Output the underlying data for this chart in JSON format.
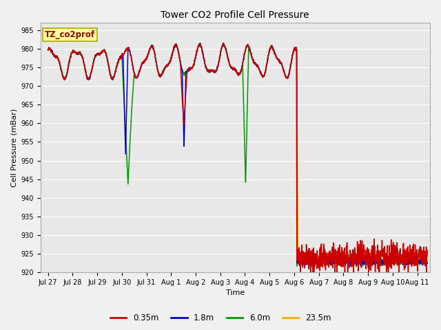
{
  "title": "Tower CO2 Profile Cell Pressure",
  "xlabel": "Time",
  "ylabel": "Cell Pressure (mBar)",
  "ylim": [
    920,
    987
  ],
  "yticks": [
    920,
    925,
    930,
    935,
    940,
    945,
    950,
    955,
    960,
    965,
    970,
    975,
    980,
    985
  ],
  "figsize": [
    6.4,
    4.8
  ],
  "dpi": 100,
  "bg_color": "#f0f0f0",
  "plot_bg_color": "#e8e8e8",
  "series_colors": [
    "#cc0000",
    "#0000cc",
    "#009900",
    "#ffaa00"
  ],
  "series_labels": [
    "0.35m",
    "1.8m",
    "6.0m",
    "23.5m"
  ],
  "legend_box_text": "TZ_co2prof",
  "legend_box_facecolor": "#ffff99",
  "legend_box_edgecolor": "#aaaa00",
  "legend_box_textcolor": "#990000",
  "xtick_labels": [
    "Jul 27",
    "Jul 28",
    "Jul 29",
    "Jul 30",
    "Jul 31",
    "Aug 1",
    "Aug 2",
    "Aug 3",
    "Aug 4",
    "Aug 5",
    "Aug 6",
    "Aug 7",
    "Aug 8",
    "Aug 9",
    "Aug 10",
    "Aug 11"
  ],
  "xtick_positions": [
    0,
    1,
    2,
    3,
    4,
    5,
    6,
    7,
    8,
    9,
    10,
    11,
    12,
    13,
    14,
    15
  ],
  "xlim": [
    -0.3,
    15.5
  ],
  "grid_color": "#ffffff",
  "title_fontsize": 10,
  "axis_fontsize": 8,
  "tick_fontsize": 7
}
